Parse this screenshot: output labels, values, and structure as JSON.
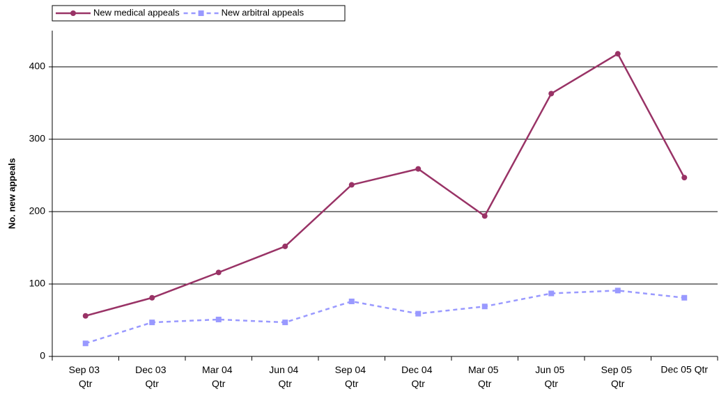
{
  "chart_data": {
    "type": "line",
    "y_label": "No. new appeals",
    "categories": [
      "Sep 03 Qtr",
      "Dec 03 Qtr",
      "Mar 04 Qtr",
      "Jun 04 Qtr",
      "Sep 04 Qtr",
      "Dec 04 Qtr",
      "Mar 05 Qtr",
      "Jun 05 Qtr",
      "Sep 05 Qtr",
      "Dec 05 Qtr"
    ],
    "series": [
      {
        "name": "New medical appeals",
        "color": "#993366",
        "marker": "circle",
        "dashed": false,
        "values": [
          56,
          81,
          116,
          152,
          237,
          259,
          194,
          363,
          418,
          247
        ]
      },
      {
        "name": "New arbitral appeals",
        "color": "#9999ff",
        "marker": "square",
        "dashed": true,
        "values": [
          18,
          47,
          51,
          47,
          76,
          59,
          69,
          87,
          91,
          81
        ]
      }
    ],
    "ylim": [
      0,
      450
    ],
    "yticks": [
      0,
      100,
      200,
      300,
      400
    ],
    "grid": true,
    "legend": "top-left"
  }
}
